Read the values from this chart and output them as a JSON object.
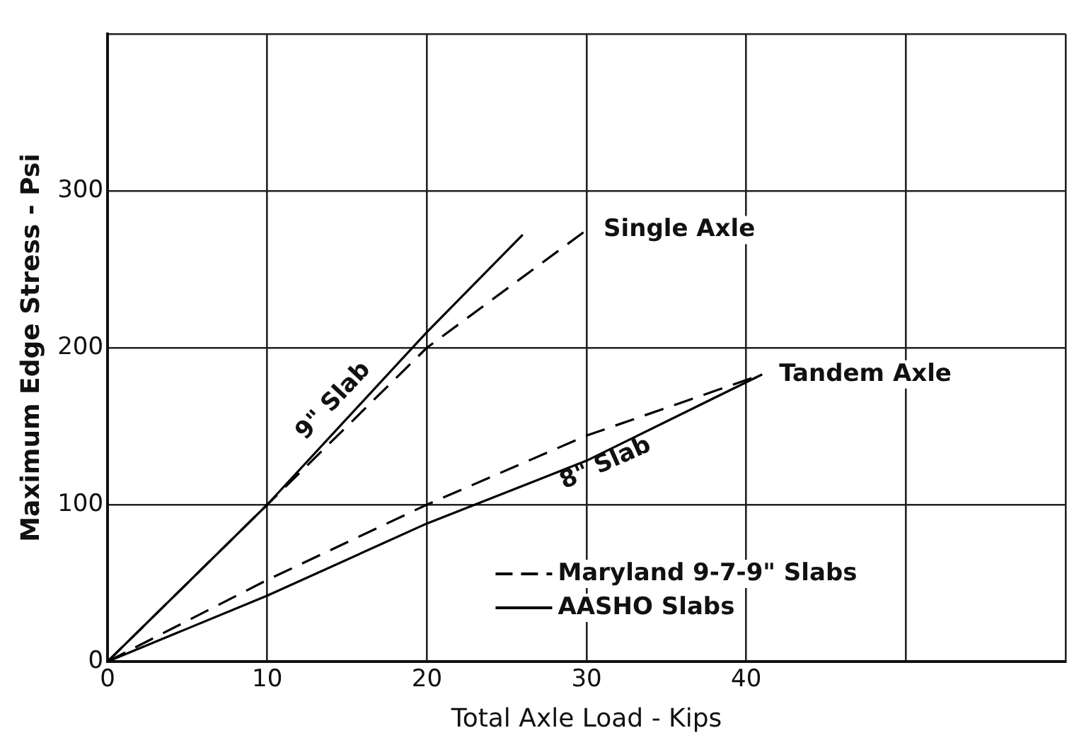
{
  "chart_data": {
    "type": "line",
    "xlabel": "Total Axle Load - Kips",
    "ylabel": "Maximum Edge Stress - Psi",
    "xlim": [
      0,
      60
    ],
    "xticks": [
      0,
      10,
      20,
      30,
      40,
      {
        "value": 50,
        "label": null
      },
      {
        "value": 60,
        "label": null
      }
    ],
    "ylim": [
      0,
      400
    ],
    "yticks": [
      0,
      100,
      200,
      300,
      {
        "value": 400,
        "label": null
      }
    ],
    "grid": true,
    "legend": "bottom right",
    "marker": "none",
    "series": [
      {
        "name": "Maryland 9-7-9\" Slabs",
        "color": "#000000",
        "line_style": "dashed",
        "x": [
          0,
          10,
          20,
          30
        ],
        "values": [
          0,
          100,
          200,
          275
        ]
      },
      {
        "color": "#000000",
        "line_style": "dashed",
        "x": [
          0,
          10,
          20,
          30,
          41
        ],
        "values": [
          0,
          52,
          100,
          144,
          183
        ]
      },
      {
        "name": "AASHO Slabs",
        "color": "#000000",
        "line_style": "solid",
        "x": [
          0,
          10,
          20,
          26
        ],
        "values": [
          0,
          100,
          210,
          272
        ]
      },
      {
        "color": "#000000",
        "line_style": "solid",
        "x": [
          0,
          10,
          20,
          30,
          41
        ],
        "values": [
          0,
          42,
          88,
          128,
          183
        ]
      }
    ],
    "annotations": [
      {
        "text": "Single Axle",
        "x": 30,
        "y": 275
      },
      {
        "text": "Tandem Axle",
        "x": 41,
        "y": 183
      },
      "9\" Slab",
      "8\" Slab"
    ]
  }
}
